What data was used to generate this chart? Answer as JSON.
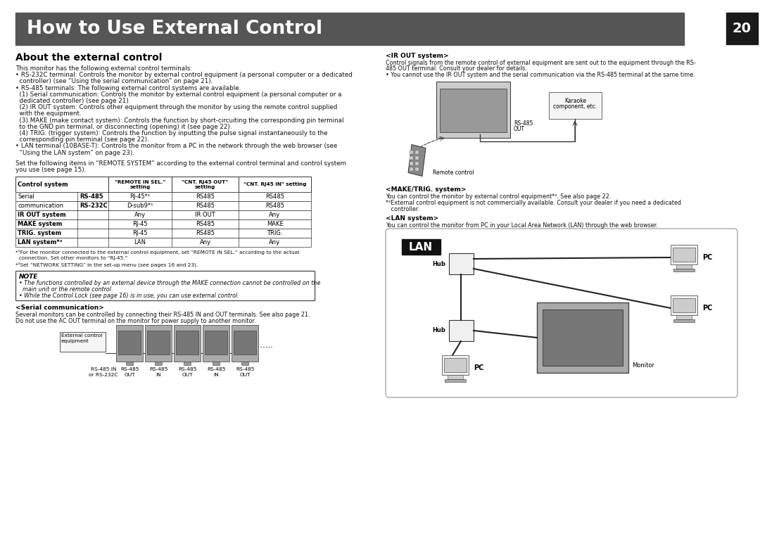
{
  "bg_color": "#ffffff",
  "title_bg": "#555555",
  "title_text": "How to Use External Control",
  "title_color": "#ffffff",
  "page_num": "20",
  "page_num_bg": "#1a1a1a",
  "page_num_color": "#ffffff",
  "section_title": "About the external control",
  "ir_out_title": "<IR OUT system>",
  "ir_out_lines": [
    "Control signals from the remote control of external equipment are sent out to the equipment through the RS-",
    "485 OUT terminal. Consult your dealer for details.",
    "• You cannot use the IR OUT system and the serial communication via the RS-485 terminal at the same time."
  ],
  "make_trig_title": "<MAKE/TRIG. system>",
  "make_trig_lines": [
    "You can control the monitor by external control equipment*³. See also page 22.",
    "*³External control equipment is not commercially available. Consult your dealer if you need a dedicated",
    "   controller."
  ],
  "lan_system_title": "<LAN system>",
  "lan_system_text": "You can control the monitor from PC in your Local Area Network (LAN) through the web browser.",
  "note_title": "NOTE",
  "note_lines": [
    "• The functions controlled by an external device through the MAKE connection cannot be controlled on the",
    "  main unit or the remote control.",
    "• While the Control Lock (see page 16) is in use, you can use external control."
  ],
  "serial_comm_title": "<Serial communication>",
  "serial_comm_lines": [
    "Several monitors can be controlled by connecting their RS-485 IN and OUT terminals. See also page 21.",
    "Do not use the AC OUT terminal on the monitor for power supply to another monitor."
  ],
  "body_lines": [
    "This monitor has the following external control terminals:",
    "• RS-232C terminal: Controls the monitor by external control equipment (a personal computer or a dedicated",
    "  controller) (see “Using the serial communication” on page 21).",
    "• RS-485 terminals: The following external control systems are available.",
    "  (1) Serial communication: Controls the monitor by external control equipment (a personal computer or a",
    "  dedicated controller) (see page 21).",
    "  (2) IR OUT system: Controls other equipment through the monitor by using the remote control supplied",
    "  with the equipment.",
    "  (3) MAKE (make contact system): Controls the function by short-circuiting the corresponding pin terminal",
    "  to the GND pin terminal, or disconnecting (opening) it (see page 22).",
    "  (4) TRIG. (trigger system): Controls the function by inputting the pulse signal instantaneously to the",
    "  corresponding pin terminal (see page 22).",
    "• LAN terminal (10BASE-T): Controls the monitor from a PC in the network through the web browser (see",
    "  “Using the LAN system” on page 23)."
  ],
  "set_lines": [
    "Set the following items in “REMOTE SYSTEM” according to the external control terminal and control system",
    "you use (see page 15)."
  ],
  "table_rows": [
    [
      "Serial",
      "RS-485",
      "RJ-45*¹",
      "RS485",
      "RS485"
    ],
    [
      "communication",
      "RS-232C",
      "D-sub9*¹",
      "RS485",
      "RS485"
    ],
    [
      "IR OUT system",
      "",
      "Any",
      "IR OUT",
      "Any"
    ],
    [
      "MAKE system",
      "",
      "RJ-45",
      "RS485",
      "MAKE"
    ],
    [
      "TRIG. system",
      "",
      "RJ-45",
      "RS485",
      "TRIG."
    ],
    [
      "LAN system*²",
      "",
      "LAN",
      "Any",
      "Any"
    ]
  ],
  "fn1": "*¹For the monitor connected to the external control equipment, set “REMOTE IN SEL.” according to the actual",
  "fn1b": "  connection. Set other monitors to “RJ-45.”",
  "fn2": "*²Set “NETWORK SETTING” in the set-up menu (see pages 16 and 23)."
}
